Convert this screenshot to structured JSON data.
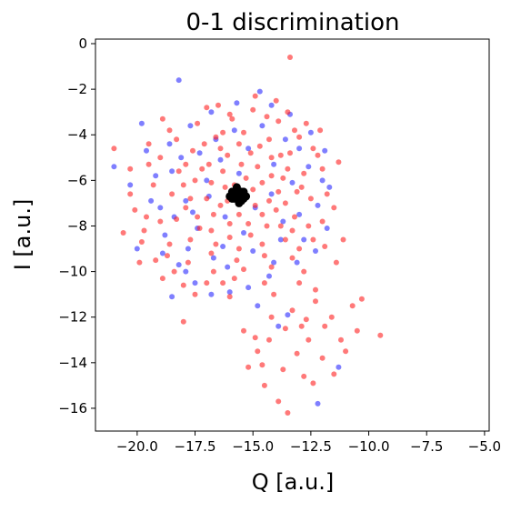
{
  "chart_data": {
    "type": "scatter",
    "title": "0-1 discrimination",
    "xlabel": "Q [a.u.]",
    "ylabel": "I [a.u.]",
    "xlim": [
      -21.8,
      -4.8
    ],
    "ylim": [
      -17.0,
      0.2
    ],
    "xticks": [
      -20.0,
      -17.5,
      -15.0,
      -12.5,
      -10.0,
      -7.5,
      -5.0
    ],
    "xtick_labels": [
      "−20.0",
      "−17.5",
      "−15.0",
      "−12.5",
      "−10.0",
      "−7.5",
      "−5.0"
    ],
    "yticks": [
      0,
      -2,
      -4,
      -6,
      -8,
      -10,
      -12,
      -14,
      -16
    ],
    "ytick_labels": [
      "0",
      "−2",
      "−4",
      "−6",
      "−8",
      "−10",
      "−12",
      "−14",
      "−16"
    ],
    "grid": false,
    "series": [
      {
        "color": "#2a2aff",
        "opacity": 0.6,
        "values": [
          [
            -18.2,
            -1.6
          ],
          [
            -14.7,
            -2.1
          ],
          [
            -19.8,
            -3.5
          ],
          [
            -21.0,
            -5.4
          ],
          [
            -20.3,
            -6.2
          ],
          [
            -20.0,
            -9.0
          ],
          [
            -18.5,
            -11.1
          ],
          [
            -19.6,
            -4.7
          ],
          [
            -19.0,
            -7.2
          ],
          [
            -18.8,
            -8.4
          ],
          [
            -18.2,
            -9.7
          ],
          [
            -17.5,
            -10.5
          ],
          [
            -16.8,
            -11.0
          ],
          [
            -16.0,
            -10.9
          ],
          [
            -15.2,
            -10.7
          ],
          [
            -14.3,
            -10.2
          ],
          [
            -13.1,
            -9.6
          ],
          [
            -12.3,
            -9.1
          ],
          [
            -11.8,
            -8.1
          ],
          [
            -11.7,
            -6.3
          ],
          [
            -11.9,
            -4.7
          ],
          [
            -12.5,
            -3.9
          ],
          [
            -13.4,
            -3.1
          ],
          [
            -14.2,
            -2.7
          ],
          [
            -15.7,
            -2.6
          ],
          [
            -16.8,
            -3.0
          ],
          [
            -17.7,
            -3.6
          ],
          [
            -18.6,
            -4.4
          ],
          [
            -19.2,
            -5.8
          ],
          [
            -19.4,
            -6.9
          ],
          [
            -18.9,
            -9.2
          ],
          [
            -17.9,
            -10.0
          ],
          [
            -14.8,
            -11.5
          ],
          [
            -13.5,
            -11.9
          ],
          [
            -11.3,
            -14.2
          ],
          [
            -12.2,
            -15.8
          ],
          [
            -13.9,
            -12.4
          ],
          [
            -17.0,
            -6.0
          ],
          [
            -16.4,
            -5.1
          ],
          [
            -15.2,
            -4.6
          ],
          [
            -14.1,
            -5.3
          ],
          [
            -13.3,
            -6.1
          ],
          [
            -13.0,
            -7.5
          ],
          [
            -13.8,
            -8.6
          ],
          [
            -15.0,
            -9.1
          ],
          [
            -16.3,
            -8.9
          ],
          [
            -17.4,
            -8.1
          ],
          [
            -17.9,
            -6.9
          ],
          [
            -17.3,
            -4.8
          ],
          [
            -15.8,
            -3.8
          ],
          [
            -13.6,
            -4.2
          ],
          [
            -12.6,
            -5.4
          ],
          [
            -12.2,
            -7.1
          ],
          [
            -12.8,
            -8.6
          ],
          [
            -14.1,
            -9.6
          ],
          [
            -16.1,
            -9.8
          ],
          [
            -17.8,
            -9.0
          ],
          [
            -18.4,
            -7.6
          ],
          [
            -18.5,
            -5.6
          ],
          [
            -16.6,
            -4.2
          ],
          [
            -14.6,
            -3.6
          ],
          [
            -13.0,
            -4.6
          ],
          [
            -12.0,
            -6.0
          ],
          [
            -15.6,
            -5.7
          ],
          [
            -14.9,
            -7.2
          ],
          [
            -16.2,
            -7.6
          ],
          [
            -16.9,
            -6.7
          ],
          [
            -15.4,
            -8.3
          ],
          [
            -14.2,
            -6.6
          ],
          [
            -13.7,
            -7.8
          ],
          [
            -16.7,
            -9.4
          ],
          [
            -17.6,
            -7.4
          ],
          [
            -18.1,
            -5.0
          ]
        ]
      },
      {
        "color": "#ff2020",
        "opacity": 0.6,
        "values": [
          [
            -13.4,
            -0.6
          ],
          [
            -14.9,
            -2.3
          ],
          [
            -21.0,
            -4.6
          ],
          [
            -20.3,
            -6.6
          ],
          [
            -20.6,
            -8.3
          ],
          [
            -19.6,
            -7.6
          ],
          [
            -18.4,
            -10.0
          ],
          [
            -17.5,
            -11.0
          ],
          [
            -18.0,
            -12.2
          ],
          [
            -16.5,
            -2.7
          ],
          [
            -16.3,
            -3.9
          ],
          [
            -13.9,
            -3.4
          ],
          [
            -13.0,
            -4.1
          ],
          [
            -12.7,
            -3.5
          ],
          [
            -11.8,
            -6.6
          ],
          [
            -11.1,
            -8.6
          ],
          [
            -11.4,
            -9.6
          ],
          [
            -12.3,
            -10.8
          ],
          [
            -12.7,
            -12.1
          ],
          [
            -12.3,
            -11.3
          ],
          [
            -11.6,
            -12.0
          ],
          [
            -10.7,
            -11.5
          ],
          [
            -10.3,
            -11.2
          ],
          [
            -9.5,
            -12.8
          ],
          [
            -10.5,
            -12.6
          ],
          [
            -11.0,
            -13.5
          ],
          [
            -12.6,
            -13.0
          ],
          [
            -12.9,
            -12.4
          ],
          [
            -13.6,
            -12.5
          ],
          [
            -14.3,
            -13.0
          ],
          [
            -14.8,
            -13.5
          ],
          [
            -15.2,
            -14.2
          ],
          [
            -14.6,
            -14.1
          ],
          [
            -14.5,
            -15.0
          ],
          [
            -13.9,
            -15.7
          ],
          [
            -13.5,
            -16.2
          ],
          [
            -12.4,
            -14.9
          ],
          [
            -11.5,
            -14.5
          ],
          [
            -11.2,
            -13.0
          ],
          [
            -12.0,
            -13.8
          ],
          [
            -13.1,
            -13.6
          ],
          [
            -13.7,
            -14.3
          ],
          [
            -12.8,
            -14.6
          ],
          [
            -14.2,
            -12.0
          ],
          [
            -15.4,
            -12.6
          ],
          [
            -14.9,
            -12.9
          ],
          [
            -11.9,
            -12.4
          ],
          [
            -13.3,
            -11.7
          ],
          [
            -13.0,
            -10.5
          ],
          [
            -20.3,
            -5.5
          ],
          [
            -19.8,
            -8.7
          ],
          [
            -19.2,
            -9.5
          ],
          [
            -17.0,
            -10.5
          ],
          [
            -15.8,
            -10.3
          ],
          [
            -14.5,
            -10.5
          ],
          [
            -13.3,
            -9.4
          ],
          [
            -12.4,
            -8.6
          ],
          [
            -12.0,
            -7.8
          ],
          [
            -12.0,
            -5.5
          ],
          [
            -12.4,
            -4.6
          ],
          [
            -13.5,
            -3.0
          ],
          [
            -15.0,
            -2.9
          ],
          [
            -16.0,
            -3.1
          ],
          [
            -17.4,
            -3.5
          ],
          [
            -18.3,
            -4.2
          ],
          [
            -19.0,
            -5.0
          ],
          [
            -19.3,
            -6.2
          ],
          [
            -19.0,
            -7.8
          ],
          [
            -18.6,
            -8.8
          ],
          [
            -17.8,
            -9.6
          ],
          [
            -16.7,
            -10.0
          ],
          [
            -15.4,
            -9.9
          ],
          [
            -14.2,
            -9.8
          ],
          [
            -13.0,
            -9.0
          ],
          [
            -12.6,
            -8.0
          ],
          [
            -12.5,
            -6.8
          ],
          [
            -12.8,
            -5.7
          ],
          [
            -13.4,
            -4.8
          ],
          [
            -14.3,
            -4.2
          ],
          [
            -15.4,
            -3.9
          ],
          [
            -16.6,
            -4.1
          ],
          [
            -17.6,
            -4.7
          ],
          [
            -18.2,
            -5.6
          ],
          [
            -18.5,
            -6.6
          ],
          [
            -18.3,
            -7.7
          ],
          [
            -17.7,
            -8.6
          ],
          [
            -16.8,
            -9.2
          ],
          [
            -15.7,
            -9.5
          ],
          [
            -14.5,
            -9.3
          ],
          [
            -13.6,
            -8.6
          ],
          [
            -13.2,
            -7.6
          ],
          [
            -13.1,
            -6.5
          ],
          [
            -13.5,
            -5.5
          ],
          [
            -14.2,
            -5.0
          ],
          [
            -15.1,
            -4.8
          ],
          [
            -16.1,
            -4.9
          ],
          [
            -16.9,
            -5.3
          ],
          [
            -17.5,
            -6.0
          ],
          [
            -17.7,
            -6.8
          ],
          [
            -17.4,
            -7.6
          ],
          [
            -16.8,
            -8.2
          ],
          [
            -16.0,
            -8.5
          ],
          [
            -15.1,
            -8.4
          ],
          [
            -14.4,
            -8.0
          ],
          [
            -14.0,
            -7.3
          ],
          [
            -13.9,
            -6.5
          ],
          [
            -14.2,
            -5.8
          ],
          [
            -14.8,
            -5.4
          ],
          [
            -15.5,
            -5.3
          ],
          [
            -16.3,
            -5.6
          ],
          [
            -16.8,
            -6.1
          ],
          [
            -17.0,
            -6.8
          ],
          [
            -16.7,
            -7.5
          ],
          [
            -16.0,
            -7.9
          ],
          [
            -15.2,
            -7.9
          ],
          [
            -14.6,
            -7.5
          ],
          [
            -14.3,
            -6.9
          ],
          [
            -14.6,
            -6.1
          ],
          [
            -15.3,
            -5.9
          ],
          [
            -16.2,
            -6.3
          ],
          [
            -16.4,
            -7.1
          ],
          [
            -15.6,
            -7.5
          ],
          [
            -14.9,
            -7.1
          ],
          [
            -15.0,
            -6.4
          ],
          [
            -15.8,
            -6.2
          ],
          [
            -16.1,
            -6.9
          ],
          [
            -18.6,
            -3.8
          ],
          [
            -19.5,
            -4.4
          ],
          [
            -20.1,
            -7.3
          ],
          [
            -19.9,
            -9.6
          ],
          [
            -18.0,
            -10.6
          ],
          [
            -16.0,
            -11.1
          ],
          [
            -14.1,
            -11.0
          ],
          [
            -12.8,
            -10.0
          ],
          [
            -11.5,
            -7.2
          ],
          [
            -11.3,
            -5.2
          ],
          [
            -12.1,
            -3.8
          ],
          [
            -14.0,
            -2.5
          ],
          [
            -17.0,
            -2.8
          ],
          [
            -18.9,
            -3.3
          ],
          [
            -17.2,
            -5.5
          ],
          [
            -16.4,
            -4.6
          ],
          [
            -15.6,
            -4.4
          ],
          [
            -14.7,
            -4.5
          ],
          [
            -13.8,
            -4.9
          ],
          [
            -13.7,
            -5.9
          ],
          [
            -13.6,
            -7.0
          ],
          [
            -13.8,
            -8.0
          ],
          [
            -14.6,
            -8.8
          ],
          [
            -15.6,
            -9.0
          ],
          [
            -16.6,
            -8.8
          ],
          [
            -17.3,
            -8.1
          ],
          [
            -17.9,
            -7.2
          ],
          [
            -18.0,
            -6.2
          ],
          [
            -17.9,
            -5.3
          ],
          [
            -17.1,
            -4.4
          ],
          [
            -12.9,
            -6.3
          ],
          [
            -13.3,
            -8.2
          ],
          [
            -18.7,
            -9.3
          ],
          [
            -19.5,
            -5.3
          ],
          [
            -15.9,
            -3.3
          ],
          [
            -14.4,
            -3.2
          ],
          [
            -13.2,
            -3.8
          ],
          [
            -12.2,
            -4.9
          ],
          [
            -11.9,
            -8.9
          ],
          [
            -19.7,
            -8.2
          ],
          [
            -18.9,
            -10.3
          ],
          [
            -16.3,
            -10.5
          ]
        ]
      },
      {
        "color": "#000000",
        "opacity": 1.0,
        "values": [
          [
            -15.9,
            -6.5
          ],
          [
            -15.7,
            -6.4
          ],
          [
            -15.5,
            -6.6
          ],
          [
            -15.4,
            -6.8
          ],
          [
            -15.6,
            -6.9
          ],
          [
            -15.8,
            -6.8
          ],
          [
            -16.0,
            -6.7
          ],
          [
            -15.6,
            -6.6
          ],
          [
            -15.5,
            -6.9
          ],
          [
            -15.3,
            -6.7
          ],
          [
            -15.7,
            -6.3
          ],
          [
            -15.9,
            -6.8
          ],
          [
            -15.4,
            -6.5
          ],
          [
            -15.6,
            -7.0
          ],
          [
            -15.8,
            -6.6
          ],
          [
            -15.5,
            -6.5
          ],
          [
            -15.7,
            -6.7
          ]
        ]
      }
    ]
  }
}
